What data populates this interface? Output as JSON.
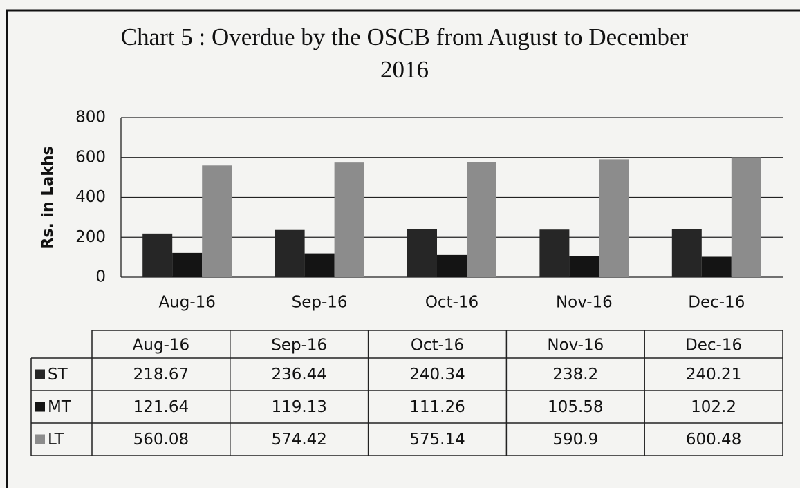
{
  "chart_data": {
    "type": "bar",
    "title": "Chart 5 : Overdue by the OSCB from August to December 2016",
    "y_label": "Rs. in Lakhs",
    "categories": [
      "Aug-16",
      "Sep-16",
      "Oct-16",
      "Nov-16",
      "Dec-16"
    ],
    "series": [
      {
        "name": "ST",
        "color": "#262626",
        "values": [
          218.67,
          236.44,
          240.34,
          238.2,
          240.21
        ]
      },
      {
        "name": "MT",
        "color": "#141414",
        "values": [
          121.64,
          119.13,
          111.26,
          105.58,
          102.2
        ]
      },
      {
        "name": "LT",
        "color": "#8c8c8c",
        "values": [
          560.08,
          574.42,
          575.14,
          590.9,
          600.48
        ]
      }
    ],
    "ylim": [
      0,
      800
    ],
    "yticks": [
      0,
      200,
      400,
      600,
      800
    ],
    "grid": true
  }
}
